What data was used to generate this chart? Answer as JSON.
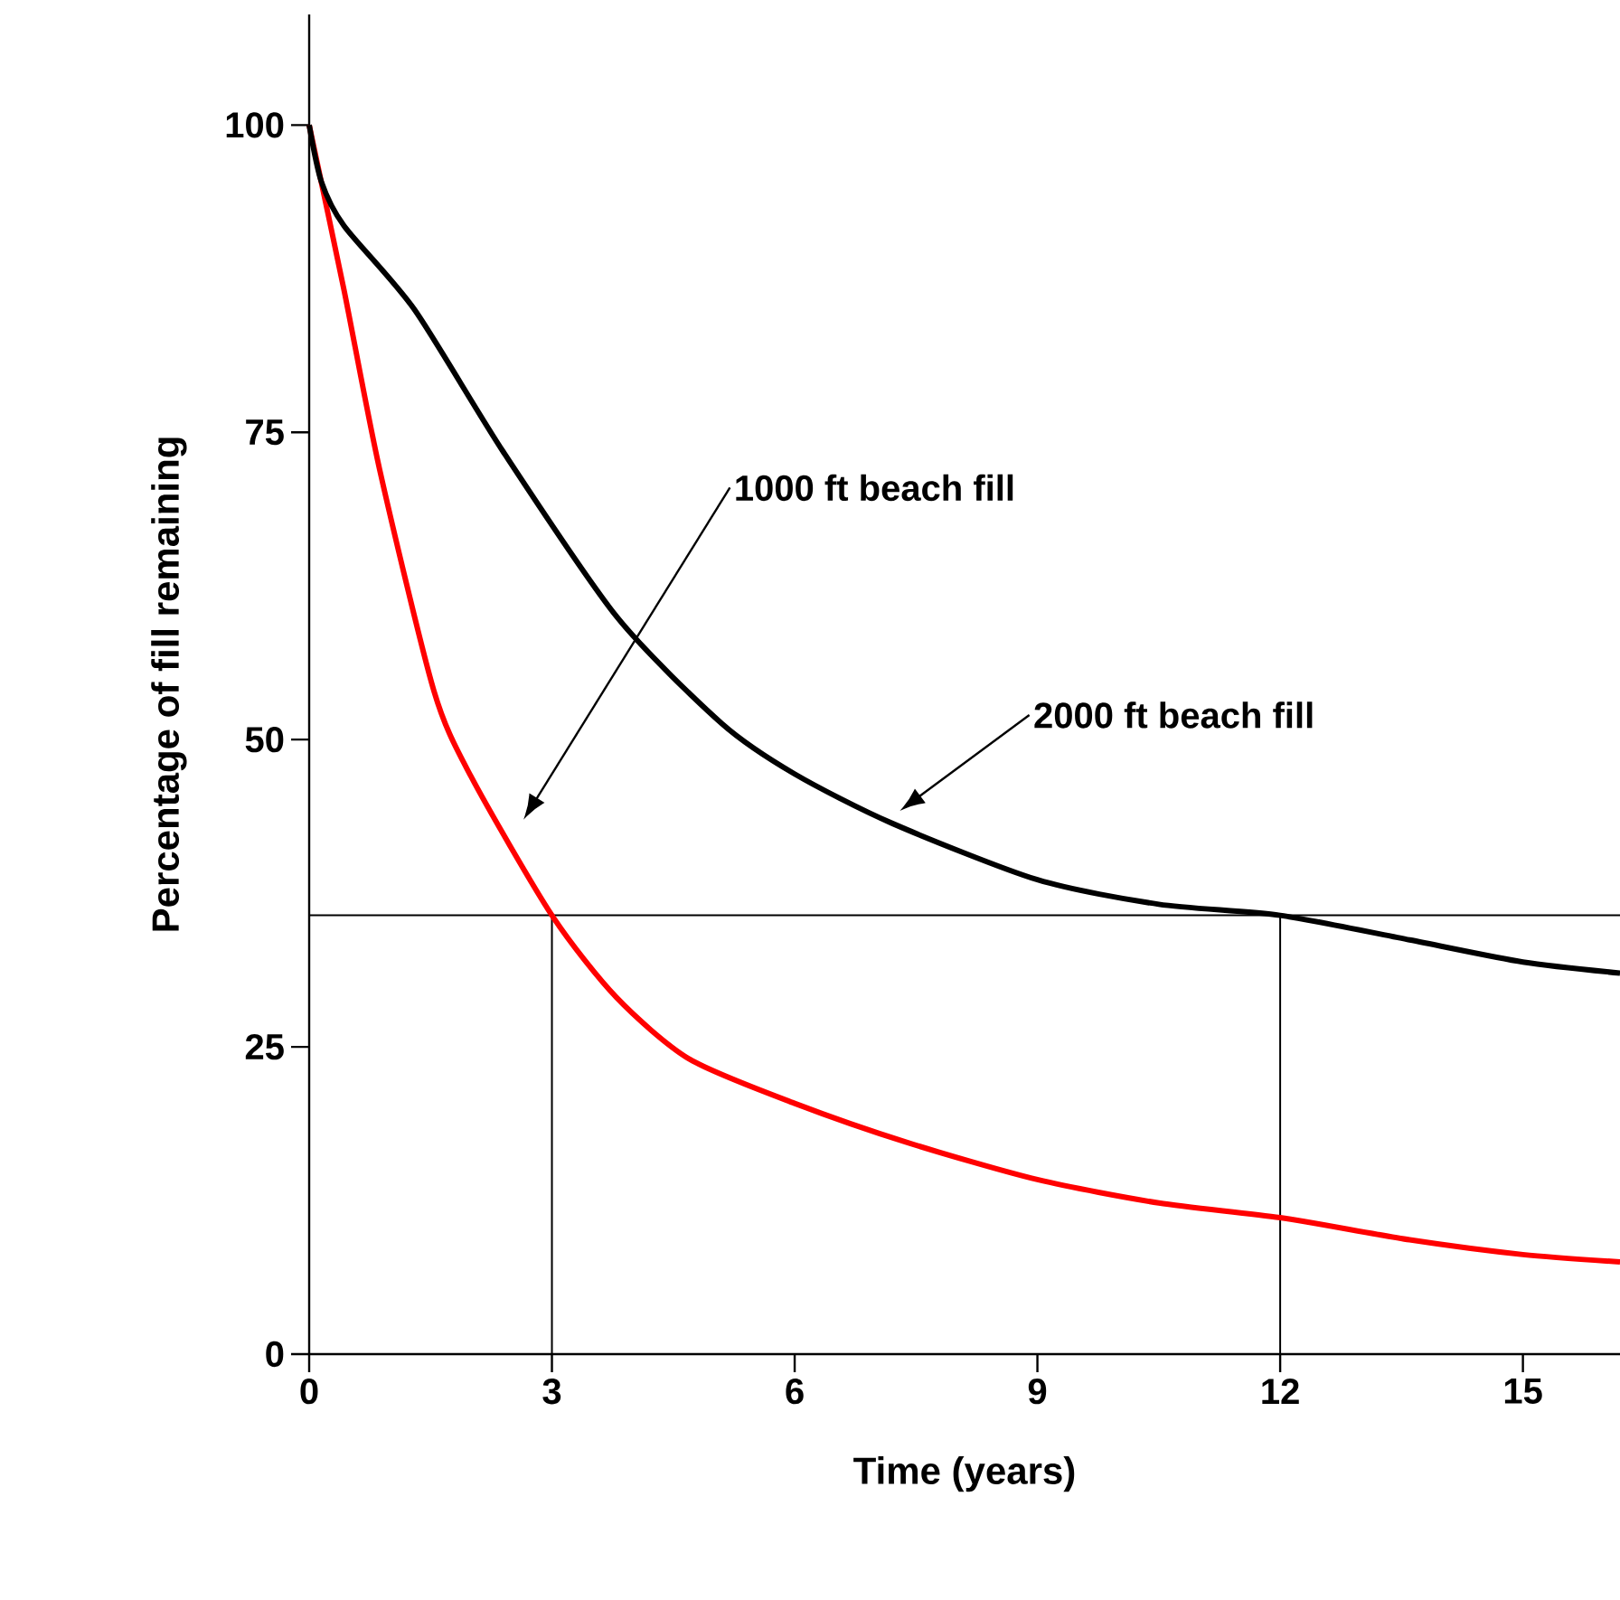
{
  "chart_data": {
    "type": "line",
    "xlabel": "Time (years)",
    "ylabel": "Percentage of fill remaining",
    "xlim": [
      0,
      16.2
    ],
    "ylim": [
      0,
      109
    ],
    "xticks": [
      0,
      3,
      6,
      9,
      12,
      15
    ],
    "yticks": [
      0,
      25,
      50,
      75,
      100
    ],
    "grid": false,
    "marker": "none",
    "line_style": "solid",
    "series": [
      {
        "color": "#ff0000",
        "x": [
          0,
          0.43,
          0.87,
          1.54,
          2,
          3,
          3.8,
          4.7,
          6,
          7.4,
          9,
          10.5,
          12,
          13.6,
          15,
          16.2
        ],
        "values": [
          100,
          86.6,
          72,
          54,
          47,
          35.7,
          29,
          24,
          20.4,
          17.2,
          14.2,
          12.3,
          11.1,
          9.3,
          8.1,
          7.5
        ]
      },
      {
        "color": "#000000",
        "x": [
          0,
          0.15,
          0.43,
          1.3,
          2.4,
          3.8,
          5.1,
          6,
          7.2,
          9,
          10.5,
          12,
          13.6,
          15,
          16.2
        ],
        "values": [
          100,
          95.4,
          91.8,
          85,
          73.4,
          60,
          51.3,
          47.2,
          43.2,
          38.6,
          36.6,
          35.7,
          33.7,
          31.9,
          31
        ]
      }
    ],
    "ref_lines": [
      {
        "axis": "y",
        "value": 35.7,
        "color": "#000000"
      },
      {
        "axis": "x",
        "value": 3,
        "color": "#000000"
      },
      {
        "axis": "x",
        "value": 12,
        "color": "#000000"
      }
    ],
    "annotations": [
      "1000 ft beach fill",
      "2000 ft beach fill"
    ]
  }
}
